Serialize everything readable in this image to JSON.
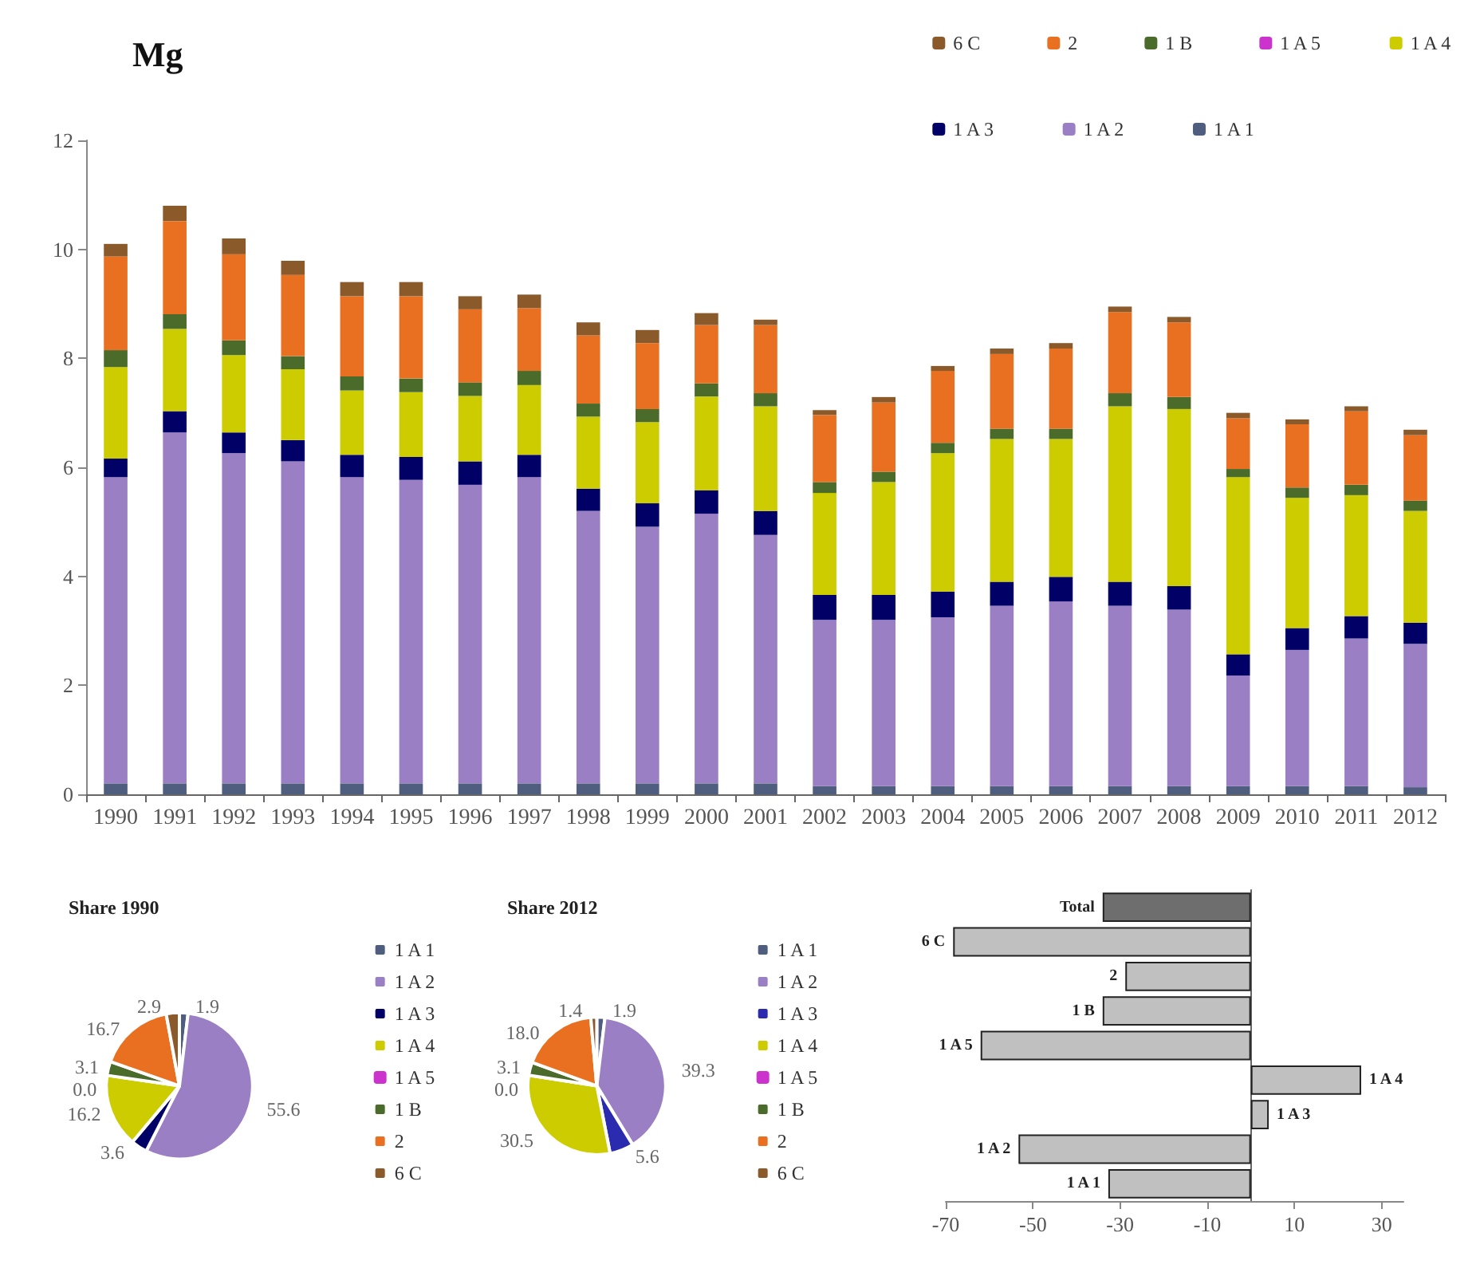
{
  "chart_data": [
    {
      "type": "bar",
      "title": "Mg",
      "stacked": true,
      "legend": "top right",
      "grid": false,
      "ylim": [
        0,
        12
      ],
      "yticks": [
        0,
        2,
        4,
        6,
        8,
        10,
        12
      ],
      "categories": [
        "1990",
        "1991",
        "1992",
        "1993",
        "1994",
        "1995",
        "1996",
        "1997",
        "1998",
        "1999",
        "2000",
        "2001",
        "2002",
        "2003",
        "2004",
        "2005",
        "2006",
        "2007",
        "2008",
        "2009",
        "2010",
        "2011",
        "2012"
      ],
      "series": [
        {
          "name": "1 A 1",
          "color": "#4f5d7e",
          "values": [
            0.2,
            0.2,
            0.2,
            0.2,
            0.2,
            0.2,
            0.2,
            0.2,
            0.2,
            0.2,
            0.2,
            0.2,
            0.15,
            0.15,
            0.15,
            0.15,
            0.15,
            0.15,
            0.15,
            0.15,
            0.15,
            0.15,
            0.13
          ]
        },
        {
          "name": "1 A 2",
          "color": "#9b7fc4",
          "values": [
            5.62,
            6.44,
            6.06,
            5.91,
            5.62,
            5.57,
            5.48,
            5.62,
            5.0,
            4.71,
            4.95,
            4.56,
            3.05,
            3.05,
            3.1,
            3.31,
            3.39,
            3.31,
            3.24,
            2.03,
            2.5,
            2.71,
            2.63
          ]
        },
        {
          "name": "1 A 3",
          "color": "#000066",
          "values": [
            0.34,
            0.39,
            0.38,
            0.39,
            0.41,
            0.42,
            0.43,
            0.41,
            0.41,
            0.43,
            0.43,
            0.44,
            0.46,
            0.46,
            0.47,
            0.44,
            0.45,
            0.44,
            0.43,
            0.39,
            0.4,
            0.41,
            0.39
          ]
        },
        {
          "name": "1 A 4",
          "color": "#cccc00",
          "values": [
            1.68,
            1.51,
            1.42,
            1.3,
            1.18,
            1.19,
            1.2,
            1.28,
            1.32,
            1.49,
            1.72,
            1.92,
            1.87,
            2.07,
            2.54,
            2.62,
            2.53,
            3.22,
            3.25,
            3.25,
            2.39,
            2.22,
            2.05
          ]
        },
        {
          "name": "1 A 5",
          "color": "#cc33cc",
          "values": [
            0,
            0,
            0,
            0,
            0,
            0,
            0,
            0,
            0,
            0,
            0,
            0,
            0,
            0,
            0,
            0,
            0,
            0,
            0,
            0,
            0,
            0,
            0
          ]
        },
        {
          "name": "1 B",
          "color": "#4a6b2a",
          "values": [
            0.31,
            0.27,
            0.27,
            0.24,
            0.26,
            0.25,
            0.25,
            0.26,
            0.24,
            0.24,
            0.24,
            0.24,
            0.2,
            0.19,
            0.19,
            0.19,
            0.19,
            0.24,
            0.22,
            0.15,
            0.19,
            0.19,
            0.19
          ]
        },
        {
          "name": "2",
          "color": "#e87020",
          "values": [
            1.72,
            1.71,
            1.58,
            1.49,
            1.47,
            1.51,
            1.34,
            1.15,
            1.25,
            1.21,
            1.07,
            1.25,
            1.23,
            1.27,
            1.32,
            1.37,
            1.47,
            1.49,
            1.37,
            0.93,
            1.16,
            1.35,
            1.2
          ]
        },
        {
          "name": "6 C",
          "color": "#8b5a2b",
          "values": [
            0.23,
            0.28,
            0.29,
            0.26,
            0.26,
            0.26,
            0.24,
            0.25,
            0.24,
            0.24,
            0.22,
            0.1,
            0.09,
            0.1,
            0.09,
            0.1,
            0.1,
            0.1,
            0.1,
            0.1,
            0.09,
            0.09,
            0.1
          ]
        }
      ]
    },
    {
      "type": "pie",
      "title": "Share 1990",
      "legend": "right",
      "categories": [
        "1 A 1",
        "1 A 2",
        "1 A 3",
        "1 A 4",
        "1 A 5",
        "1 B",
        "2",
        "6 C"
      ],
      "values": [
        1.9,
        55.6,
        3.6,
        16.2,
        0.0,
        3.1,
        16.7,
        2.9
      ],
      "value_labels": [
        "1.9",
        "55.6",
        "3.6",
        "16.2",
        "0.0",
        "3.1",
        "16.7",
        "2.9"
      ],
      "colors": [
        "#4f5d7e",
        "#9b7fc4",
        "#000066",
        "#cccc00",
        "#cc33cc",
        "#4a6b2a",
        "#e87020",
        "#8b5a2b"
      ]
    },
    {
      "type": "pie",
      "title": "Share 2012",
      "legend": "right",
      "categories": [
        "1 A 1",
        "1 A 2",
        "1 A 3",
        "1 A 4",
        "1 A 5",
        "1 B",
        "2",
        "6 C"
      ],
      "values": [
        1.9,
        39.3,
        5.6,
        30.5,
        0.0,
        3.1,
        18.0,
        1.4
      ],
      "value_labels": [
        "1.9",
        "39.3",
        "5.6",
        "30.5",
        "0.0",
        "3.1",
        "18.0",
        "1.4"
      ],
      "colors": [
        "#4f5d7e",
        "#9b7fc4",
        "#2b2bb0",
        "#cccc00",
        "#cc33cc",
        "#4a6b2a",
        "#e87020",
        "#8b5a2b"
      ]
    },
    {
      "type": "bar",
      "orientation": "horizontal",
      "grid": false,
      "xlim": [
        -70,
        35
      ],
      "xticks": [
        -70,
        -50,
        -30,
        -10,
        10,
        30
      ],
      "categories": [
        "Total",
        "6 C",
        "2",
        "1 B",
        "1 A 5",
        "1 A 4",
        "1 A 3",
        "1 A 2",
        "1 A 1"
      ],
      "series": [
        {
          "colors": [
            "#6e6e6e",
            "#c0c0c0",
            "#c0c0c0",
            "#c0c0c0",
            "#c0c0c0",
            "#c0c0c0",
            "#c0c0c0",
            "#c0c0c0",
            "#c0c0c0"
          ],
          "values": [
            -34,
            -68.3,
            -28.8,
            -34,
            -62,
            25.3,
            4.1,
            -53.3,
            -32.7
          ]
        }
      ]
    }
  ]
}
